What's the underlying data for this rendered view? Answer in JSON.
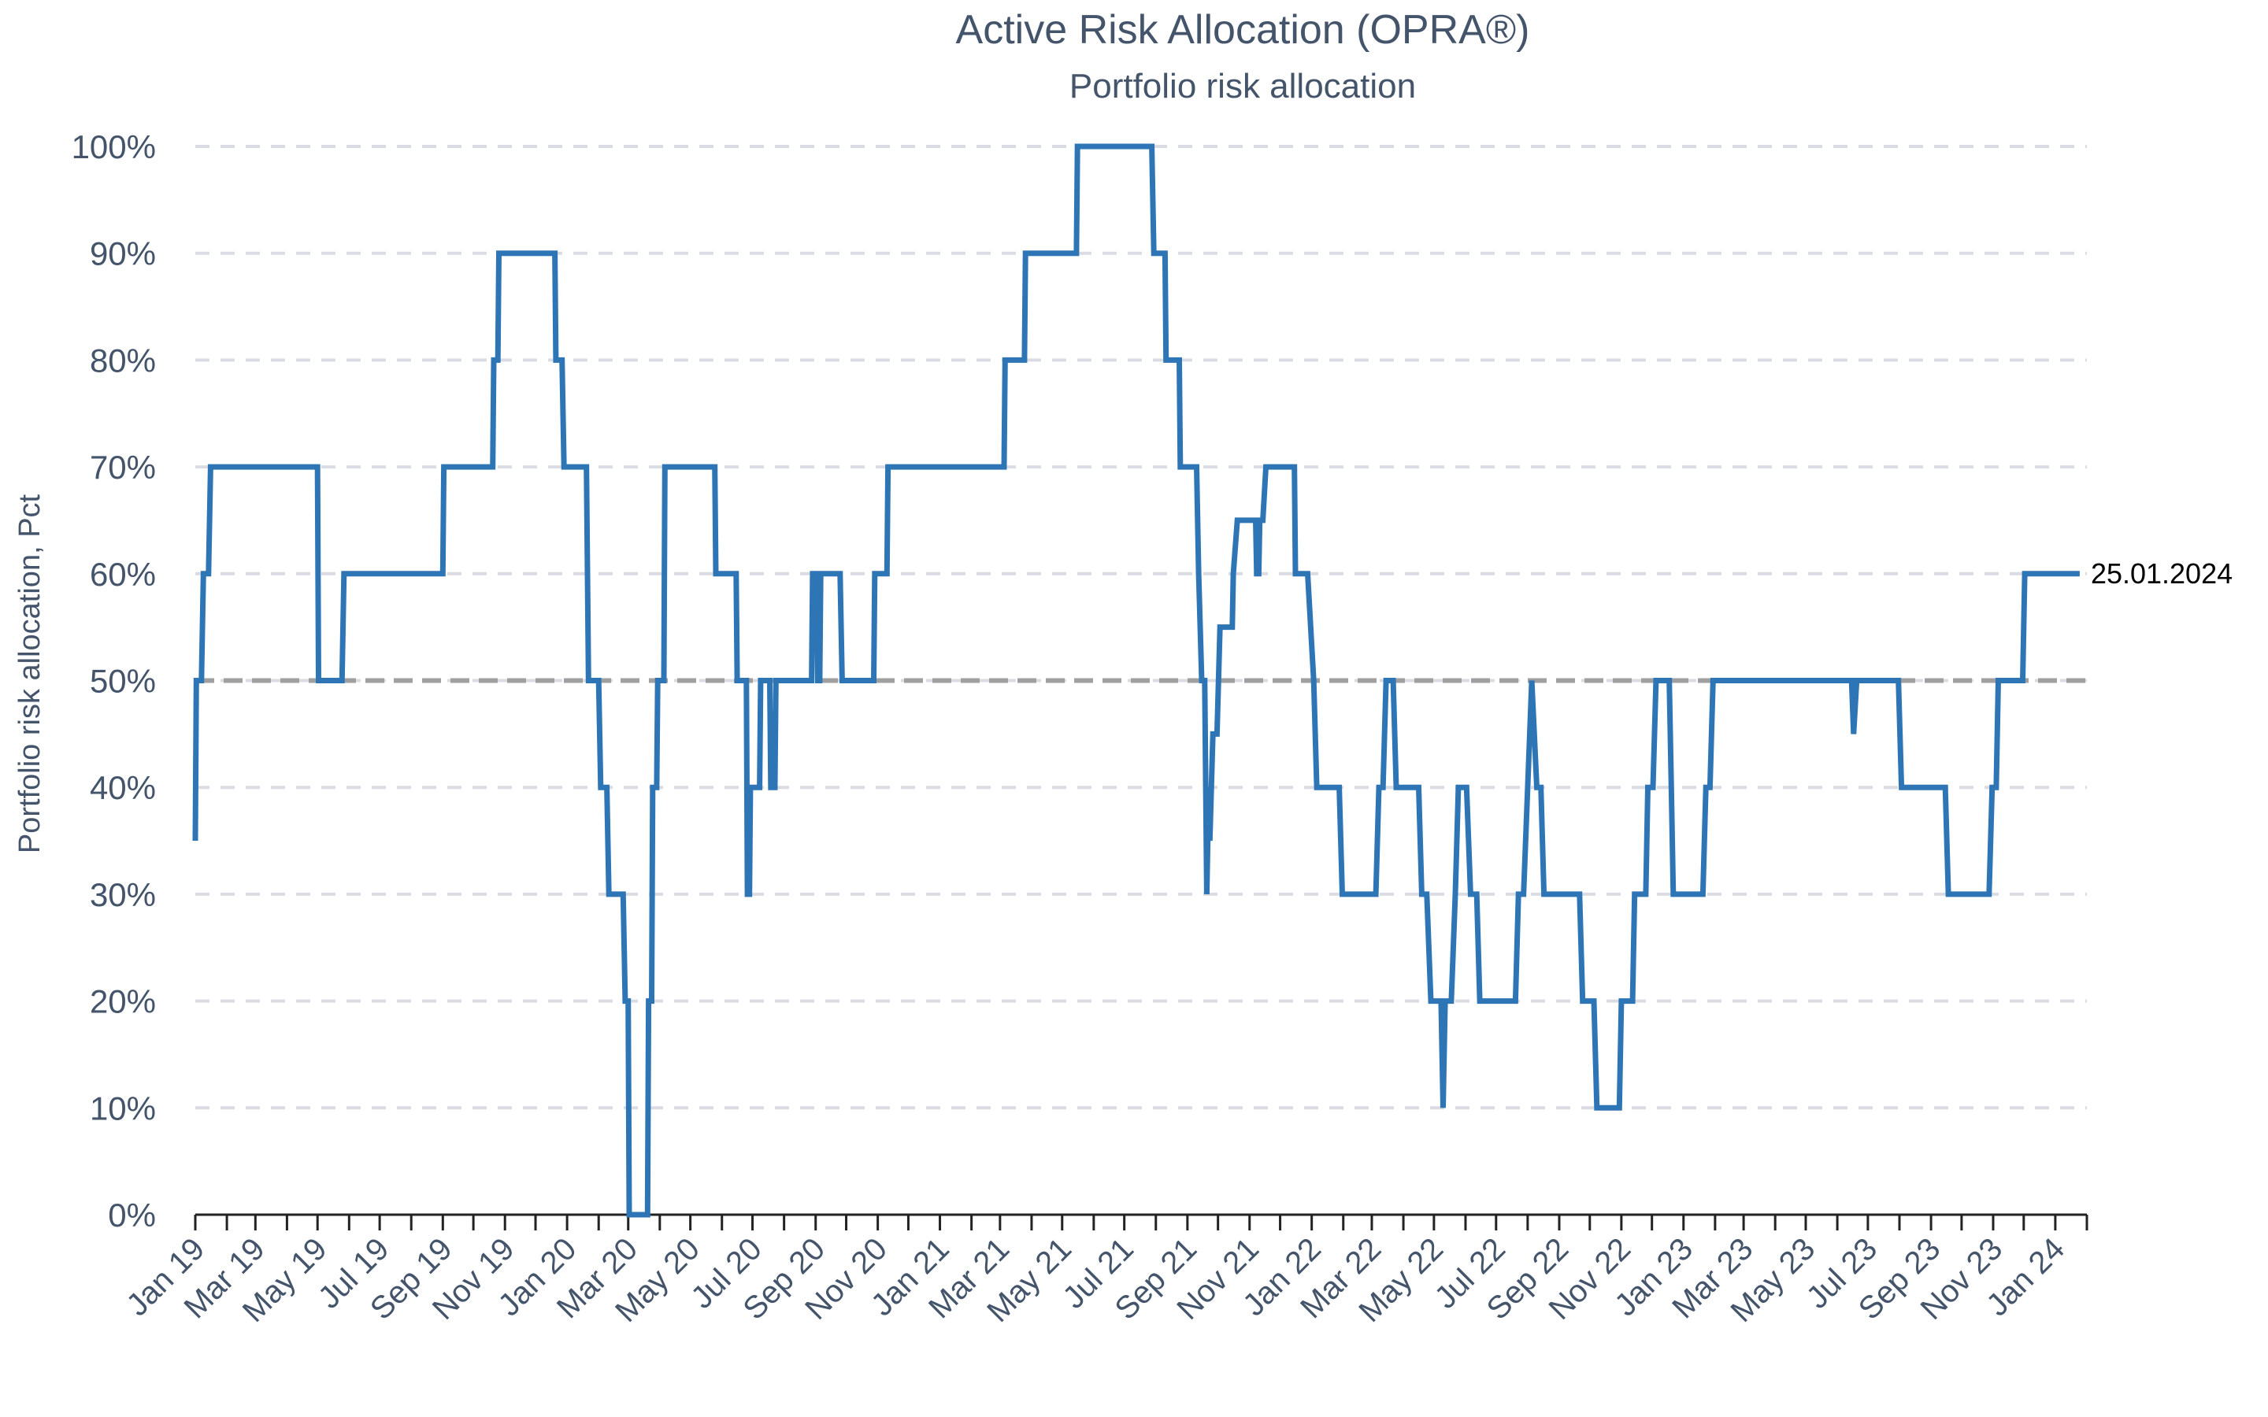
{
  "chart_data": {
    "type": "line",
    "title": "Active Risk Allocation (OPRA®)",
    "subtitle": "Portfolio risk allocation",
    "xlabel": "",
    "ylabel": "Portfolio risk allocation, Pct",
    "ylim": [
      0,
      100
    ],
    "yticks": [
      "0%",
      "10%",
      "20%",
      "30%",
      "40%",
      "50%",
      "60%",
      "70%",
      "80%",
      "90%",
      "100%"
    ],
    "xlim": [
      "2019-01-01",
      "2024-02-01"
    ],
    "xtick_labels": [
      "Jan 19",
      "Mar 19",
      "May 19",
      "Jul 19",
      "Sep 19",
      "Nov 19",
      "Jan 20",
      "Mar 20",
      "May 20",
      "Jul 20",
      "Sep 20",
      "Nov 20",
      "Jan 21",
      "Mar 21",
      "May 21",
      "Jul 21",
      "Sep 21",
      "Nov 21",
      "Jan 22",
      "Mar 22",
      "May 22",
      "Jul 22",
      "Sep 22",
      "Nov 22",
      "Jan 23",
      "Mar 23",
      "May 23",
      "Jul 23",
      "Sep 23",
      "Nov 23",
      "Jan 24"
    ],
    "grid": "horizontal-dashed",
    "reference_line": {
      "y": 50
    },
    "end_label": "25.01.2024",
    "colors": {
      "series": "#2e75b6",
      "reference": "#a0a0a0",
      "grid": "#d9dde3",
      "text": "#44546a"
    },
    "series": [
      {
        "values": [
          [
            "2019-01-01",
            35
          ],
          [
            "2019-01-02",
            50
          ],
          [
            "2019-01-07",
            50
          ],
          [
            "2019-01-09",
            60
          ],
          [
            "2019-01-14",
            60
          ],
          [
            "2019-01-16",
            70
          ],
          [
            "2019-05-01",
            70
          ],
          [
            "2019-05-02",
            50
          ],
          [
            "2019-05-25",
            50
          ],
          [
            "2019-05-27",
            60
          ],
          [
            "2019-09-01",
            60
          ],
          [
            "2019-09-02",
            70
          ],
          [
            "2019-10-20",
            70
          ],
          [
            "2019-10-21",
            80
          ],
          [
            "2019-10-25",
            80
          ],
          [
            "2019-10-26",
            90
          ],
          [
            "2019-12-20",
            90
          ],
          [
            "2019-12-21",
            80
          ],
          [
            "2019-12-27",
            80
          ],
          [
            "2019-12-29",
            70
          ],
          [
            "2020-01-20",
            70
          ],
          [
            "2020-01-22",
            50
          ],
          [
            "2020-02-01",
            50
          ],
          [
            "2020-02-03",
            40
          ],
          [
            "2020-02-09",
            40
          ],
          [
            "2020-02-11",
            30
          ],
          [
            "2020-02-25",
            30
          ],
          [
            "2020-02-27",
            20
          ],
          [
            "2020-03-01",
            20
          ],
          [
            "2020-03-02",
            0
          ],
          [
            "2020-03-20",
            0
          ],
          [
            "2020-03-21",
            20
          ],
          [
            "2020-03-24",
            20
          ],
          [
            "2020-03-25",
            40
          ],
          [
            "2020-03-29",
            40
          ],
          [
            "2020-03-30",
            50
          ],
          [
            "2020-04-05",
            50
          ],
          [
            "2020-04-06",
            70
          ],
          [
            "2020-05-25",
            70
          ],
          [
            "2020-05-26",
            60
          ],
          [
            "2020-06-15",
            60
          ],
          [
            "2020-06-16",
            50
          ],
          [
            "2020-06-25",
            50
          ],
          [
            "2020-06-26",
            30
          ],
          [
            "2020-06-28",
            30
          ],
          [
            "2020-06-29",
            40
          ],
          [
            "2020-07-08",
            40
          ],
          [
            "2020-07-09",
            50
          ],
          [
            "2020-07-18",
            50
          ],
          [
            "2020-07-19",
            40
          ],
          [
            "2020-07-23",
            40
          ],
          [
            "2020-07-24",
            50
          ],
          [
            "2020-08-28",
            50
          ],
          [
            "2020-08-29",
            60
          ],
          [
            "2020-09-02",
            60
          ],
          [
            "2020-09-03",
            50
          ],
          [
            "2020-09-05",
            50
          ],
          [
            "2020-09-06",
            60
          ],
          [
            "2020-09-25",
            60
          ],
          [
            "2020-09-27",
            50
          ],
          [
            "2020-10-28",
            50
          ],
          [
            "2020-10-29",
            60
          ],
          [
            "2020-11-10",
            60
          ],
          [
            "2020-11-11",
            70
          ],
          [
            "2021-03-05",
            70
          ],
          [
            "2021-03-06",
            80
          ],
          [
            "2021-03-25",
            80
          ],
          [
            "2021-03-26",
            90
          ],
          [
            "2021-05-15",
            90
          ],
          [
            "2021-05-16",
            100
          ],
          [
            "2021-07-28",
            100
          ],
          [
            "2021-07-30",
            90
          ],
          [
            "2021-08-10",
            90
          ],
          [
            "2021-08-11",
            80
          ],
          [
            "2021-08-24",
            80
          ],
          [
            "2021-08-25",
            70
          ],
          [
            "2021-09-10",
            70
          ],
          [
            "2021-09-12",
            60
          ],
          [
            "2021-09-15",
            50
          ],
          [
            "2021-09-18",
            50
          ],
          [
            "2021-09-20",
            30
          ],
          [
            "2021-09-22",
            40
          ],
          [
            "2021-09-23",
            35
          ],
          [
            "2021-09-26",
            45
          ],
          [
            "2021-09-30",
            45
          ],
          [
            "2021-10-03",
            55
          ],
          [
            "2021-10-15",
            55
          ],
          [
            "2021-10-16",
            60
          ],
          [
            "2021-10-20",
            65
          ],
          [
            "2021-11-07",
            65
          ],
          [
            "2021-11-08",
            60
          ],
          [
            "2021-11-10",
            60
          ],
          [
            "2021-11-11",
            65
          ],
          [
            "2021-11-14",
            65
          ],
          [
            "2021-11-17",
            70
          ],
          [
            "2021-12-15",
            70
          ],
          [
            "2021-12-16",
            60
          ],
          [
            "2021-12-28",
            60
          ],
          [
            "2022-01-03",
            50
          ],
          [
            "2022-01-06",
            40
          ],
          [
            "2022-01-28",
            40
          ],
          [
            "2022-01-31",
            30
          ],
          [
            "2022-03-05",
            30
          ],
          [
            "2022-03-08",
            40
          ],
          [
            "2022-03-12",
            40
          ],
          [
            "2022-03-15",
            50
          ],
          [
            "2022-03-22",
            50
          ],
          [
            "2022-03-25",
            40
          ],
          [
            "2022-04-16",
            40
          ],
          [
            "2022-04-19",
            30
          ],
          [
            "2022-04-24",
            30
          ],
          [
            "2022-04-28",
            20
          ],
          [
            "2022-05-08",
            20
          ],
          [
            "2022-05-10",
            10
          ],
          [
            "2022-05-12",
            20
          ],
          [
            "2022-05-18",
            20
          ],
          [
            "2022-05-22",
            30
          ],
          [
            "2022-05-25",
            40
          ],
          [
            "2022-06-02",
            40
          ],
          [
            "2022-06-06",
            30
          ],
          [
            "2022-06-12",
            30
          ],
          [
            "2022-06-15",
            20
          ],
          [
            "2022-07-20",
            20
          ],
          [
            "2022-07-23",
            30
          ],
          [
            "2022-07-28",
            30
          ],
          [
            "2022-08-01",
            40
          ],
          [
            "2022-08-05",
            50
          ],
          [
            "2022-08-10",
            40
          ],
          [
            "2022-08-14",
            40
          ],
          [
            "2022-08-17",
            30
          ],
          [
            "2022-09-21",
            30
          ],
          [
            "2022-09-24",
            20
          ],
          [
            "2022-10-05",
            20
          ],
          [
            "2022-10-08",
            10
          ],
          [
            "2022-10-30",
            10
          ],
          [
            "2022-11-01",
            20
          ],
          [
            "2022-11-12",
            20
          ],
          [
            "2022-11-14",
            30
          ],
          [
            "2022-11-25",
            30
          ],
          [
            "2022-11-27",
            40
          ],
          [
            "2022-12-02",
            40
          ],
          [
            "2022-12-05",
            50
          ],
          [
            "2022-12-18",
            50
          ],
          [
            "2022-12-20",
            40
          ],
          [
            "2022-12-22",
            30
          ],
          [
            "2023-01-20",
            30
          ],
          [
            "2023-01-23",
            40
          ],
          [
            "2023-01-27",
            40
          ],
          [
            "2023-01-30",
            50
          ],
          [
            "2023-06-15",
            50
          ],
          [
            "2023-06-17",
            45
          ],
          [
            "2023-06-20",
            50
          ],
          [
            "2023-07-31",
            50
          ],
          [
            "2023-08-03",
            40
          ],
          [
            "2023-09-15",
            40
          ],
          [
            "2023-09-18",
            30
          ],
          [
            "2023-10-28",
            30
          ],
          [
            "2023-10-31",
            40
          ],
          [
            "2023-11-04",
            40
          ],
          [
            "2023-11-06",
            50
          ],
          [
            "2023-11-30",
            50
          ],
          [
            "2023-12-02",
            60
          ],
          [
            "2024-01-25",
            60
          ]
        ]
      }
    ]
  }
}
